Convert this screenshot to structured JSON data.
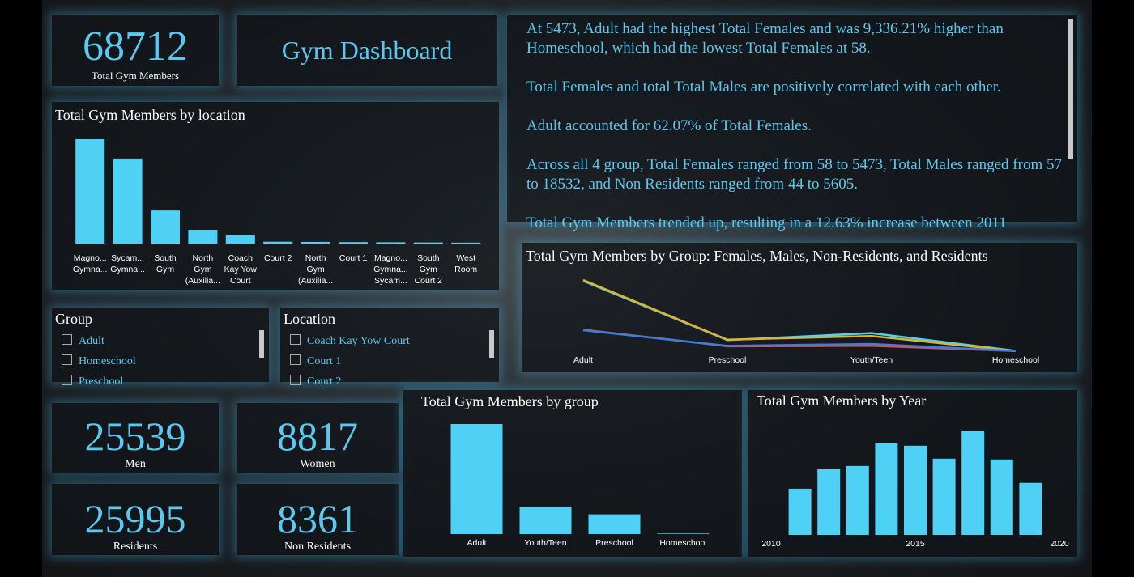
{
  "header": {
    "title": "Gym Dashboard"
  },
  "kpis": [
    {
      "value": 68712,
      "label": "Total Gym Members"
    },
    {
      "value": 25539,
      "label": "Men"
    },
    {
      "value": 8817,
      "label": "Women"
    },
    {
      "value": 25995,
      "label": "Residents"
    },
    {
      "value": 8361,
      "label": "Non Residents"
    }
  ],
  "narrative": [
    "At 5473, Adult had the highest Total Females and was 9,336.21% higher than Homeschool, which had the lowest Total Females at 58.",
    "Total Females and total Total Males are positively correlated with each other.",
    "Adult accounted for 62.07% of Total Females.",
    "Across all 4 group, Total Females ranged from 58 to 5473, Total Males ranged from 57 to 18532, and Non Residents ranged from 44 to 5605.",
    "Total Gym Members trended up, resulting in a 12.63% increase between 2011"
  ],
  "slicers": [
    {
      "title": "Group",
      "items": [
        "Adult",
        "Homeschool",
        "Preschool"
      ]
    },
    {
      "title": "Location",
      "items": [
        "Coach Kay Yow Court",
        "Court 1",
        "Court 2"
      ]
    }
  ],
  "chart_data": [
    {
      "type": "bar",
      "title": "Total Gym Members by location",
      "categories": [
        "Magno... Gymna...",
        "Sycam... Gymna...",
        "South Gym",
        "North Gym (Auxilia...",
        "Coach Kay Yow Court",
        "Court 2",
        "North Gym (Auxilia...",
        "Court 1",
        "Magno... Gymna... Sycam...",
        "South Gym Court 2",
        "West Room"
      ],
      "values": [
        28100,
        22900,
        8900,
        3700,
        2400,
        500,
        450,
        400,
        350,
        300,
        250
      ],
      "color": "#4fd0f5"
    },
    {
      "type": "line",
      "title": "Total Gym Members by Group: Females, Males, Non-Residents, and Residents",
      "categories": [
        "Adult",
        "Preschool",
        "Youth/Teen",
        "Homeschool"
      ],
      "series": [
        {
          "color": "#4fd0f5",
          "values": [
            18300,
            2900,
            4700,
            95
          ]
        },
        {
          "color": "#e0b628",
          "values": [
            18532,
            3000,
            3950,
            57
          ]
        },
        {
          "color": "#d9534f",
          "values": [
            5605,
            1300,
            1412,
            44
          ]
        },
        {
          "color": "#3a7ee0",
          "values": [
            5473,
            1400,
            1886,
            58
          ]
        }
      ]
    },
    {
      "type": "bar",
      "title": "Total Gym Members by group",
      "categories": [
        "Adult",
        "Youth/Teen",
        "Preschool",
        "Homeschool"
      ],
      "values": [
        47910,
        11948,
        8600,
        254
      ],
      "color": "#4fd0f5"
    },
    {
      "type": "histbar",
      "title": "Total Gym Members by Year",
      "x": [
        2011,
        2012,
        2013,
        2014,
        2015,
        2016,
        2017,
        2018,
        2019
      ],
      "values": [
        4740,
        6740,
        7070,
        9400,
        9150,
        7820,
        10713,
        7740,
        5339
      ],
      "xlim": [
        2010,
        2020
      ],
      "xticks": [
        2010,
        2015,
        2020
      ],
      "color": "#4fd0f5"
    }
  ]
}
